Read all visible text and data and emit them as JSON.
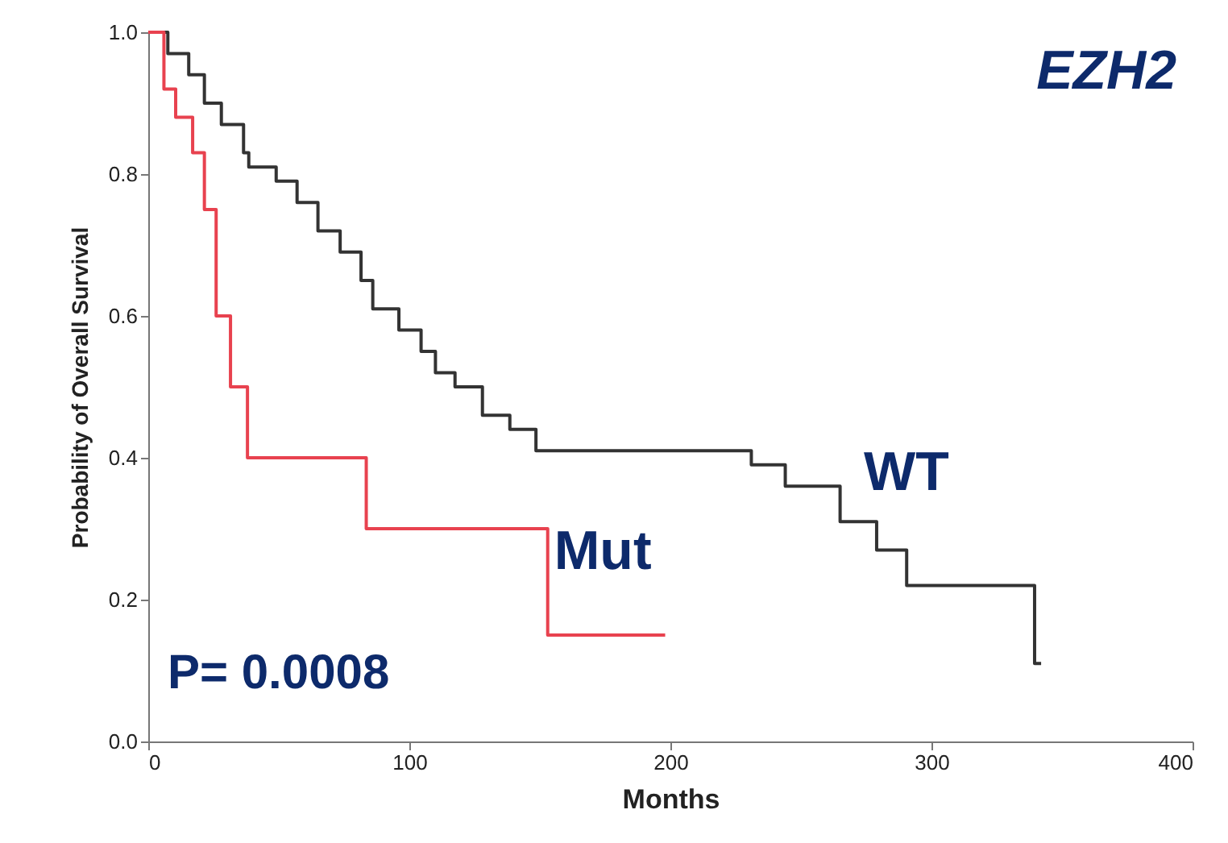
{
  "chart_data": {
    "type": "step",
    "title": "EZH2",
    "xlabel": "Months",
    "ylabel": "Probability of Overall Survival",
    "annotations": [
      "P= 0.0008"
    ],
    "xlim": [
      0,
      400
    ],
    "xticks": [
      0,
      100,
      200,
      300,
      400
    ],
    "ylim": [
      0,
      1
    ],
    "yticks": [
      {
        "value": 0,
        "label": "0.0"
      },
      {
        "value": 0.2,
        "label": "0.2"
      },
      {
        "value": 0.4,
        "label": "0.4"
      },
      {
        "value": 0.6,
        "label": "0.6"
      },
      {
        "value": 0.8,
        "label": "0.8"
      },
      {
        "value": 1,
        "label": "1.0"
      }
    ],
    "line_style": "solid",
    "series": [
      {
        "name": "WT",
        "color": "#333333",
        "x": [
          0,
          7.5,
          15.5,
          21.5,
          28,
          36.5,
          38.5,
          49,
          57,
          65,
          73.5,
          81.5,
          86,
          96,
          104.5,
          110,
          117.5,
          128,
          138.5,
          148.5,
          231,
          244,
          265,
          279,
          290.5,
          339.5,
          342
        ],
        "values": [
          1.0,
          0.97,
          0.94,
          0.9,
          0.87,
          0.83,
          0.81,
          0.79,
          0.76,
          0.72,
          0.69,
          0.65,
          0.61,
          0.58,
          0.55,
          0.52,
          0.5,
          0.46,
          0.44,
          0.41,
          0.39,
          0.36,
          0.31,
          0.27,
          0.22,
          0.11,
          0.11
        ]
      },
      {
        "name": "Mut",
        "color": "#e8424f",
        "x": [
          0,
          6,
          10.5,
          17,
          21.5,
          26,
          31.5,
          38,
          83.5,
          153,
          198
        ],
        "values": [
          1.0,
          0.92,
          0.88,
          0.83,
          0.75,
          0.6,
          0.5,
          0.4,
          0.3,
          0.15,
          0.15
        ]
      }
    ]
  }
}
